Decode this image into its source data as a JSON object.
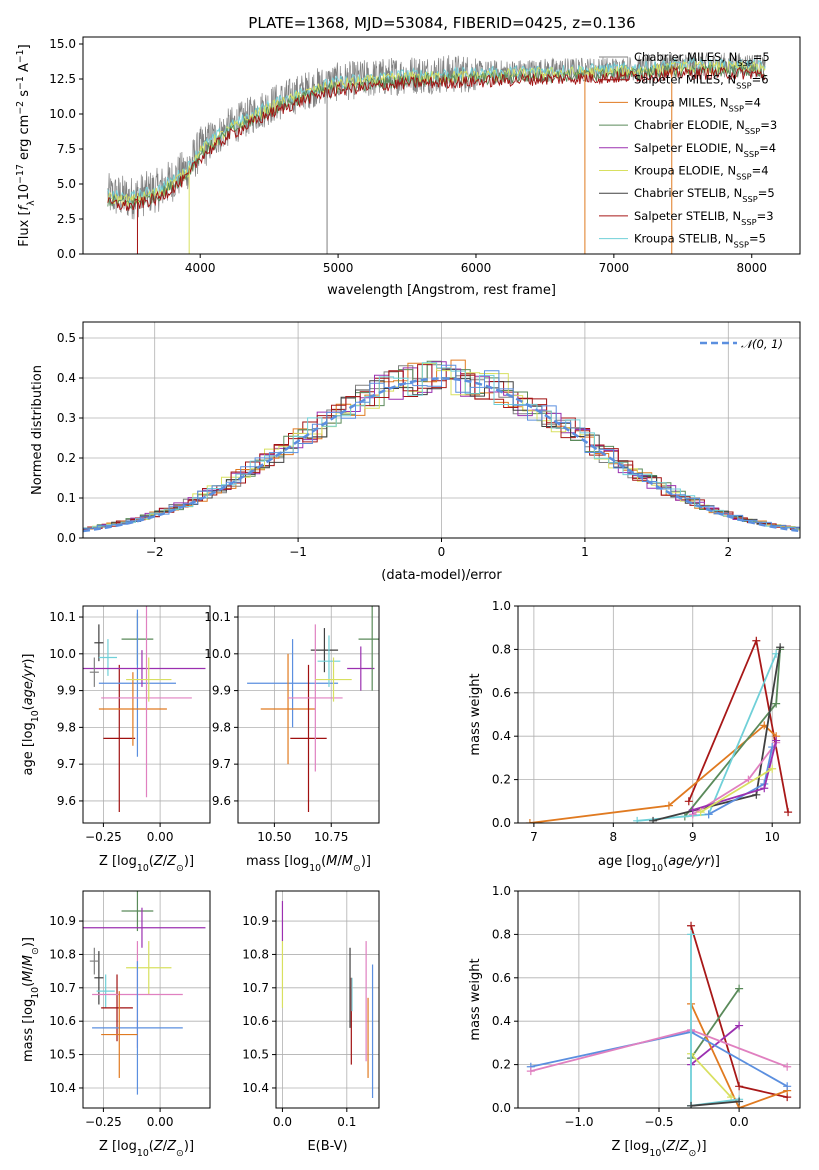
{
  "title": "PLATE=1368, MJD=53084, FIBERID=0425, z=0.136",
  "colors": {
    "chab_miles": "#808080",
    "salp_miles": "#a01010",
    "krou_miles": "#e07a20",
    "chab_elodie": "#5a8a5a",
    "salp_elodie": "#9b30b0",
    "krou_elodie": "#d8e060",
    "chab_stelib": "#404040",
    "salp_stelib": "#a81818",
    "krou_stelib": "#70d0d8",
    "norm": "#5b8fdf",
    "blue": "#5b8fdf",
    "pink": "#e080c0"
  },
  "chart_data": [
    {
      "type": "line",
      "id": "spectrum",
      "xlabel": "wavelength [Angstrom, rest frame]",
      "ylabel": "Flux [f_λ10^-17 erg cm^-2 s^-1 A^-1]",
      "xlim": [
        3150,
        8350
      ],
      "ylim": [
        0,
        15.5
      ],
      "xticks": [
        4000,
        5000,
        6000,
        7000,
        8000
      ],
      "yticks": [
        0.0,
        2.5,
        5.0,
        7.5,
        10.0,
        12.5,
        15.0
      ],
      "legend_position": "right",
      "legend": [
        {
          "label": "Chabrier MILES, N",
          "sub": "SSP",
          "tail": "=5",
          "color": "chab_miles"
        },
        {
          "label": "Salpeter MILES, N",
          "sub": "SSP",
          "tail": "=6",
          "color": "salp_miles"
        },
        {
          "label": "Kroupa MILES, N",
          "sub": "SSP",
          "tail": "=4",
          "color": "krou_miles"
        },
        {
          "label": "Chabrier ELODIE, N",
          "sub": "SSP",
          "tail": "=3",
          "color": "chab_elodie"
        },
        {
          "label": "Salpeter ELODIE, N",
          "sub": "SSP",
          "tail": "=4",
          "color": "salp_elodie"
        },
        {
          "label": "Kroupa ELODIE, N",
          "sub": "SSP",
          "tail": "=4",
          "color": "krou_elodie"
        },
        {
          "label": "Chabrier STELIB, N",
          "sub": "SSP",
          "tail": "=5",
          "color": "chab_stelib"
        },
        {
          "label": "Salpeter STELIB, N",
          "sub": "SSP",
          "tail": "=3",
          "color": "salp_stelib"
        },
        {
          "label": "Kroupa STELIB, N",
          "sub": "SSP",
          "tail": "=5",
          "color": "krou_stelib"
        }
      ],
      "continuum": [
        [
          3330,
          4.2
        ],
        [
          3500,
          4.0
        ],
        [
          3700,
          4.6
        ],
        [
          3900,
          6.0
        ],
        [
          4000,
          7.5
        ],
        [
          4200,
          9.0
        ],
        [
          4500,
          10.6
        ],
        [
          4800,
          11.8
        ],
        [
          5000,
          12.3
        ],
        [
          5500,
          12.8
        ],
        [
          6000,
          12.9
        ],
        [
          6500,
          13.1
        ],
        [
          7000,
          13.2
        ],
        [
          7500,
          13.5
        ],
        [
          8000,
          13.5
        ],
        [
          8100,
          13.3
        ]
      ],
      "dropouts": [
        {
          "x": 3545,
          "color": "salp_miles"
        },
        {
          "x": 3920,
          "color": "krou_elodie"
        },
        {
          "x": 4920,
          "color": "chab_miles"
        },
        {
          "x": 6790,
          "color": "krou_miles"
        },
        {
          "x": 7420,
          "color": "krou_miles"
        }
      ]
    },
    {
      "type": "histogram",
      "id": "residuals",
      "xlabel": "(data-model)/error",
      "ylabel": "Normed distribution",
      "xlim": [
        -2.5,
        2.5
      ],
      "ylim": [
        0,
        0.54
      ],
      "xticks": [
        -2,
        -1,
        0,
        1,
        2
      ],
      "yticks": [
        0.0,
        0.1,
        0.2,
        0.3,
        0.4,
        0.5
      ],
      "legend": {
        "label": "𝒩(0, 1)",
        "position": "top-right"
      },
      "bin_width": 0.1,
      "series_colors": [
        "chab_miles",
        "salp_miles",
        "krou_miles",
        "chab_elodie",
        "salp_elodie",
        "krou_elodie",
        "chab_stelib",
        "salp_stelib",
        "krou_stelib",
        "blue"
      ]
    },
    {
      "type": "scatter",
      "id": "age_vs_Z",
      "xlabel": "Z [log10(Z/Z⊙)]",
      "ylabel": "age [log10(age/yr)]",
      "xlim": [
        -0.34,
        0.22
      ],
      "ylim": [
        9.54,
        10.13
      ],
      "xticks": [
        -0.25,
        0.0
      ],
      "yticks": [
        9.6,
        9.7,
        9.8,
        9.9,
        10.0,
        10.1
      ],
      "points": [
        {
          "x": -0.27,
          "y": 10.03,
          "xerr": 0.02,
          "yerr": 0.05,
          "color": "chab_stelib"
        },
        {
          "x": -0.23,
          "y": 9.99,
          "xerr": 0.04,
          "yerr": 0.05,
          "color": "krou_stelib"
        },
        {
          "x": -0.18,
          "y": 9.77,
          "xerr": 0.07,
          "yerr": 0.2,
          "color": "salp_miles"
        },
        {
          "x": -0.1,
          "y": 10.04,
          "xerr": 0.07,
          "yerr": 0.07,
          "color": "chab_elodie"
        },
        {
          "x": -0.1,
          "y": 9.92,
          "xerr": 0.17,
          "yerr": 0.2,
          "color": "blue"
        },
        {
          "x": -0.12,
          "y": 9.85,
          "xerr": 0.15,
          "yerr": 0.1,
          "color": "krou_miles"
        },
        {
          "x": -0.08,
          "y": 9.96,
          "xerr": 0.28,
          "yerr": 0.05,
          "color": "salp_elodie"
        },
        {
          "x": -0.06,
          "y": 9.88,
          "xerr": 0.2,
          "yerr": 0.27,
          "color": "pink"
        },
        {
          "x": -0.05,
          "y": 9.93,
          "xerr": 0.1,
          "yerr": 0.06,
          "color": "krou_elodie"
        },
        {
          "x": -0.29,
          "y": 9.95,
          "xerr": 0.02,
          "yerr": 0.04,
          "color": "chab_miles"
        }
      ]
    },
    {
      "type": "scatter",
      "id": "age_vs_mass",
      "xlabel": "mass [log10(M/M⊙)]",
      "ylabel": "",
      "xlim": [
        10.34,
        10.96
      ],
      "ylim": [
        9.54,
        10.13
      ],
      "xticks": [
        10.5,
        10.75
      ],
      "yticks": [
        9.6,
        9.7,
        9.8,
        9.9,
        10.0,
        10.1
      ],
      "points": [
        {
          "x": 10.58,
          "y": 9.92,
          "xerr": 0.2,
          "yerr": 0.12,
          "color": "blue"
        },
        {
          "x": 10.56,
          "y": 9.85,
          "xerr": 0.12,
          "yerr": 0.15,
          "color": "krou_miles"
        },
        {
          "x": 10.65,
          "y": 9.77,
          "xerr": 0.08,
          "yerr": 0.2,
          "color": "salp_miles"
        },
        {
          "x": 10.72,
          "y": 10.01,
          "xerr": 0.06,
          "yerr": 0.06,
          "color": "chab_stelib"
        },
        {
          "x": 10.74,
          "y": 9.98,
          "xerr": 0.05,
          "yerr": 0.07,
          "color": "krou_stelib"
        },
        {
          "x": 10.68,
          "y": 9.88,
          "xerr": 0.12,
          "yerr": 0.2,
          "color": "pink"
        },
        {
          "x": 10.76,
          "y": 9.93,
          "xerr": 0.08,
          "yerr": 0.06,
          "color": "krou_elodie"
        },
        {
          "x": 10.88,
          "y": 9.96,
          "xerr": 0.06,
          "yerr": 0.06,
          "color": "salp_elodie"
        },
        {
          "x": 10.93,
          "y": 10.04,
          "xerr": 0.06,
          "yerr": 0.14,
          "color": "chab_elodie"
        }
      ]
    },
    {
      "type": "line",
      "id": "massweight_vs_age",
      "xlabel": "age [log10(age/yr)]",
      "ylabel": "mass weight",
      "xlim": [
        6.8,
        10.35
      ],
      "ylim": [
        0,
        1.0
      ],
      "xticks": [
        7,
        8,
        9,
        10
      ],
      "yticks": [
        0.0,
        0.2,
        0.4,
        0.6,
        0.8,
        1.0
      ],
      "series": [
        {
          "color": "salp_stelib",
          "x": [
            8.95,
            9.8,
            10.2
          ],
          "y": [
            0.1,
            0.84,
            0.05
          ]
        },
        {
          "color": "krou_miles",
          "x": [
            6.95,
            8.7,
            9.9,
            10.05
          ],
          "y": [
            0.0,
            0.08,
            0.45,
            0.4
          ]
        },
        {
          "color": "chab_elodie",
          "x": [
            8.9,
            10.05,
            10.1
          ],
          "y": [
            0.03,
            0.55,
            0.8
          ]
        },
        {
          "color": "krou_stelib",
          "x": [
            8.3,
            9.2,
            10.05
          ],
          "y": [
            0.01,
            0.04,
            0.78
          ]
        },
        {
          "color": "chab_stelib",
          "x": [
            8.5,
            9.8,
            10.1
          ],
          "y": [
            0.01,
            0.13,
            0.81
          ]
        },
        {
          "color": "pink",
          "x": [
            9.0,
            9.7,
            10.05
          ],
          "y": [
            0.04,
            0.2,
            0.37
          ]
        },
        {
          "color": "blue",
          "x": [
            9.2,
            9.9,
            10.0
          ],
          "y": [
            0.04,
            0.18,
            0.35
          ]
        },
        {
          "color": "salp_elodie",
          "x": [
            9.0,
            9.9,
            10.05
          ],
          "y": [
            0.06,
            0.16,
            0.38
          ]
        },
        {
          "color": "krou_elodie",
          "x": [
            9.1,
            10.0
          ],
          "y": [
            0.05,
            0.25
          ]
        }
      ]
    },
    {
      "type": "scatter",
      "id": "mass_vs_Z",
      "xlabel": "Z [log10(Z/Z⊙)]",
      "ylabel": "mass [log10(M/M⊙)]",
      "xlim": [
        -0.34,
        0.22
      ],
      "ylim": [
        10.34,
        10.99
      ],
      "xticks": [
        -0.25,
        0.0
      ],
      "yticks": [
        10.4,
        10.5,
        10.6,
        10.7,
        10.8,
        10.9
      ],
      "points": [
        {
          "x": -0.1,
          "y": 10.93,
          "xerr": 0.07,
          "yerr": 0.06,
          "color": "chab_elodie"
        },
        {
          "x": -0.08,
          "y": 10.88,
          "xerr": 0.28,
          "yerr": 0.06,
          "color": "salp_elodie"
        },
        {
          "x": -0.27,
          "y": 10.73,
          "xerr": 0.02,
          "yerr": 0.08,
          "color": "chab_stelib"
        },
        {
          "x": -0.05,
          "y": 10.76,
          "xerr": 0.1,
          "yerr": 0.08,
          "color": "krou_elodie"
        },
        {
          "x": -0.24,
          "y": 10.69,
          "xerr": 0.04,
          "yerr": 0.05,
          "color": "krou_stelib"
        },
        {
          "x": -0.19,
          "y": 10.64,
          "xerr": 0.07,
          "yerr": 0.1,
          "color": "salp_miles"
        },
        {
          "x": -0.1,
          "y": 10.68,
          "xerr": 0.2,
          "yerr": 0.16,
          "color": "pink"
        },
        {
          "x": -0.1,
          "y": 10.58,
          "xerr": 0.2,
          "yerr": 0.2,
          "color": "blue"
        },
        {
          "x": -0.18,
          "y": 10.56,
          "xerr": 0.08,
          "yerr": 0.13,
          "color": "krou_miles"
        },
        {
          "x": -0.29,
          "y": 10.78,
          "xerr": 0.02,
          "yerr": 0.04,
          "color": "chab_miles"
        }
      ]
    },
    {
      "type": "scatter",
      "id": "mass_vs_EBV",
      "xlabel": "E(B-V)",
      "ylabel": "",
      "xlim": [
        -0.01,
        0.15
      ],
      "ylim": [
        10.34,
        10.99
      ],
      "xticks": [
        0.0,
        0.1
      ],
      "yticks": [
        10.4,
        10.5,
        10.6,
        10.7,
        10.8,
        10.9
      ],
      "points": [
        {
          "x": 0.0,
          "y": 10.9,
          "yerr": 0.06,
          "color": "salp_elodie"
        },
        {
          "x": 0.0,
          "y": 10.74,
          "yerr": 0.1,
          "color": "krou_elodie"
        },
        {
          "x": 0.105,
          "y": 10.7,
          "yerr": 0.12,
          "color": "chab_stelib"
        },
        {
          "x": 0.107,
          "y": 10.6,
          "yerr": 0.13,
          "color": "salp_miles"
        },
        {
          "x": 0.108,
          "y": 10.68,
          "yerr": 0.05,
          "color": "krou_stelib"
        },
        {
          "x": 0.13,
          "y": 10.66,
          "yerr": 0.18,
          "color": "pink"
        },
        {
          "x": 0.133,
          "y": 10.55,
          "yerr": 0.12,
          "color": "krou_miles"
        },
        {
          "x": 0.14,
          "y": 10.57,
          "yerr": 0.2,
          "color": "blue"
        }
      ]
    },
    {
      "type": "line",
      "id": "massweight_vs_Z",
      "xlabel": "Z [log10(Z/Z⊙)]",
      "ylabel": "mass weight",
      "xlim": [
        -1.38,
        0.38
      ],
      "ylim": [
        0,
        1.0
      ],
      "xticks": [
        -1.0,
        -0.5,
        0.0
      ],
      "yticks": [
        0.0,
        0.2,
        0.4,
        0.6,
        0.8,
        1.0
      ],
      "series": [
        {
          "color": "salp_stelib",
          "x": [
            -0.3,
            0.0,
            0.3
          ],
          "y": [
            0.84,
            0.1,
            0.05
          ]
        },
        {
          "color": "chab_elodie",
          "x": [
            -0.3,
            0.0
          ],
          "y": [
            0.23,
            0.55
          ]
        },
        {
          "color": "salp_elodie",
          "x": [
            -0.3,
            0.0
          ],
          "y": [
            0.2,
            0.38
          ]
        },
        {
          "color": "krou_miles",
          "x": [
            -0.3,
            0.0,
            0.3
          ],
          "y": [
            0.48,
            0.0,
            0.08
          ]
        },
        {
          "color": "krou_elodie",
          "x": [
            -0.3,
            -0.05
          ],
          "y": [
            0.25,
            0.05
          ]
        },
        {
          "color": "blue",
          "x": [
            -1.3,
            -0.3,
            0.3
          ],
          "y": [
            0.19,
            0.35,
            0.1
          ]
        },
        {
          "color": "pink",
          "x": [
            -1.3,
            -0.3,
            0.3
          ],
          "y": [
            0.17,
            0.36,
            0.19
          ]
        },
        {
          "color": "krou_stelib",
          "x": [
            -0.3,
            -0.3,
            0.0
          ],
          "y": [
            0.8,
            0.01,
            0.04
          ]
        },
        {
          "color": "chab_stelib",
          "x": [
            -0.3,
            0.0
          ],
          "y": [
            0.01,
            0.03
          ]
        }
      ]
    }
  ]
}
